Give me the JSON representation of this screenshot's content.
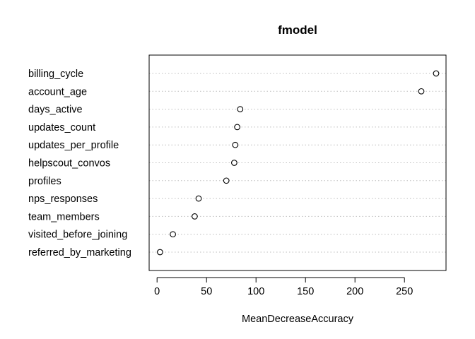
{
  "chart_data": {
    "type": "scatter",
    "title": "fmodel",
    "xlabel": "MeanDecreaseAccuracy",
    "ylabel": "",
    "categories": [
      "billing_cycle",
      "account_age",
      "days_active",
      "updates_count",
      "updates_per_profile",
      "helpscout_convos",
      "profiles",
      "nps_responses",
      "team_members",
      "visited_before_joining",
      "referred_by_marketing"
    ],
    "values": [
      282,
      267,
      84,
      81,
      79,
      78,
      70,
      42,
      38,
      16,
      3
    ],
    "xlim": [
      -8,
      292
    ],
    "xticks": [
      0,
      50,
      100,
      150,
      200,
      250
    ],
    "xtick_labels": [
      "0",
      "50",
      "100",
      "150",
      "200",
      "250"
    ],
    "grid": "dotted horizontal lines per category",
    "legend": "none",
    "marker": "open-circle",
    "colors": {
      "marker": "#000000",
      "grid": "#bebebe",
      "frame": "#000000"
    }
  }
}
